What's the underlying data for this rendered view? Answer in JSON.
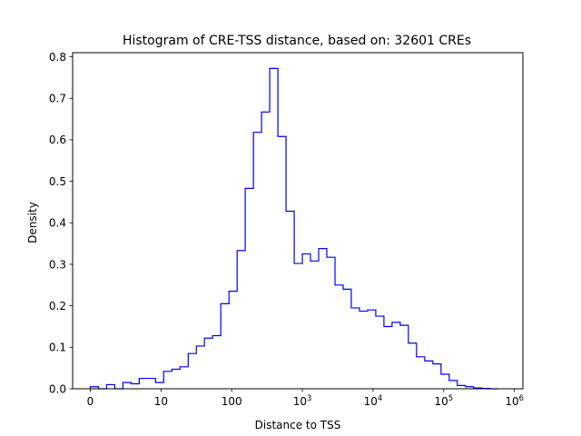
{
  "chart_data": {
    "type": "histogram",
    "title": "Histogram of CRE-TSS distance, based on: 32601 CREs",
    "xlabel": "Distance to TSS",
    "ylabel": "Density",
    "x_scale": "symlog",
    "xlim": [
      -0.25,
      6.12
    ],
    "ylim": [
      0,
      0.81
    ],
    "grid": false,
    "legend": "none",
    "line_color": "#0000ff",
    "x_ticks": [
      {
        "value": 0,
        "label": "0",
        "sup": ""
      },
      {
        "value": 1,
        "label": "10",
        "sup": ""
      },
      {
        "value": 2,
        "label": "100",
        "sup": ""
      },
      {
        "value": 3,
        "label": "10",
        "sup": "3"
      },
      {
        "value": 4,
        "label": "10",
        "sup": "4"
      },
      {
        "value": 5,
        "label": "10",
        "sup": "5"
      },
      {
        "value": 6,
        "label": "10",
        "sup": "6"
      }
    ],
    "y_ticks": [
      {
        "value": 0.0,
        "label": "0.0"
      },
      {
        "value": 0.1,
        "label": "0.1"
      },
      {
        "value": 0.2,
        "label": "0.2"
      },
      {
        "value": 0.3,
        "label": "0.3"
      },
      {
        "value": 0.4,
        "label": "0.4"
      },
      {
        "value": 0.5,
        "label": "0.5"
      },
      {
        "value": 0.6,
        "label": "0.6"
      },
      {
        "value": 0.7,
        "label": "0.7"
      },
      {
        "value": 0.8,
        "label": "0.8"
      }
    ],
    "bin_edges": [
      0.0,
      0.115,
      0.231,
      0.346,
      0.462,
      0.577,
      0.692,
      0.808,
      0.923,
      1.038,
      1.154,
      1.269,
      1.385,
      1.5,
      1.615,
      1.731,
      1.846,
      1.962,
      2.077,
      2.192,
      2.308,
      2.423,
      2.538,
      2.654,
      2.769,
      2.885,
      3.0,
      3.115,
      3.231,
      3.346,
      3.462,
      3.577,
      3.692,
      3.808,
      3.923,
      4.038,
      4.154,
      4.269,
      4.385,
      4.5,
      4.615,
      4.731,
      4.846,
      4.962,
      5.077,
      5.192,
      5.308,
      5.423,
      5.538,
      5.654,
      5.769
    ],
    "densities": [
      0.005,
      0.0,
      0.01,
      0.0,
      0.015,
      0.012,
      0.025,
      0.025,
      0.015,
      0.042,
      0.047,
      0.053,
      0.085,
      0.103,
      0.122,
      0.128,
      0.205,
      0.235,
      0.333,
      0.483,
      0.618,
      0.667,
      0.772,
      0.608,
      0.428,
      0.302,
      0.325,
      0.308,
      0.338,
      0.317,
      0.25,
      0.24,
      0.195,
      0.187,
      0.19,
      0.175,
      0.15,
      0.16,
      0.153,
      0.11,
      0.077,
      0.067,
      0.06,
      0.035,
      0.02,
      0.008,
      0.005,
      0.002,
      0.001,
      0.0
    ]
  }
}
